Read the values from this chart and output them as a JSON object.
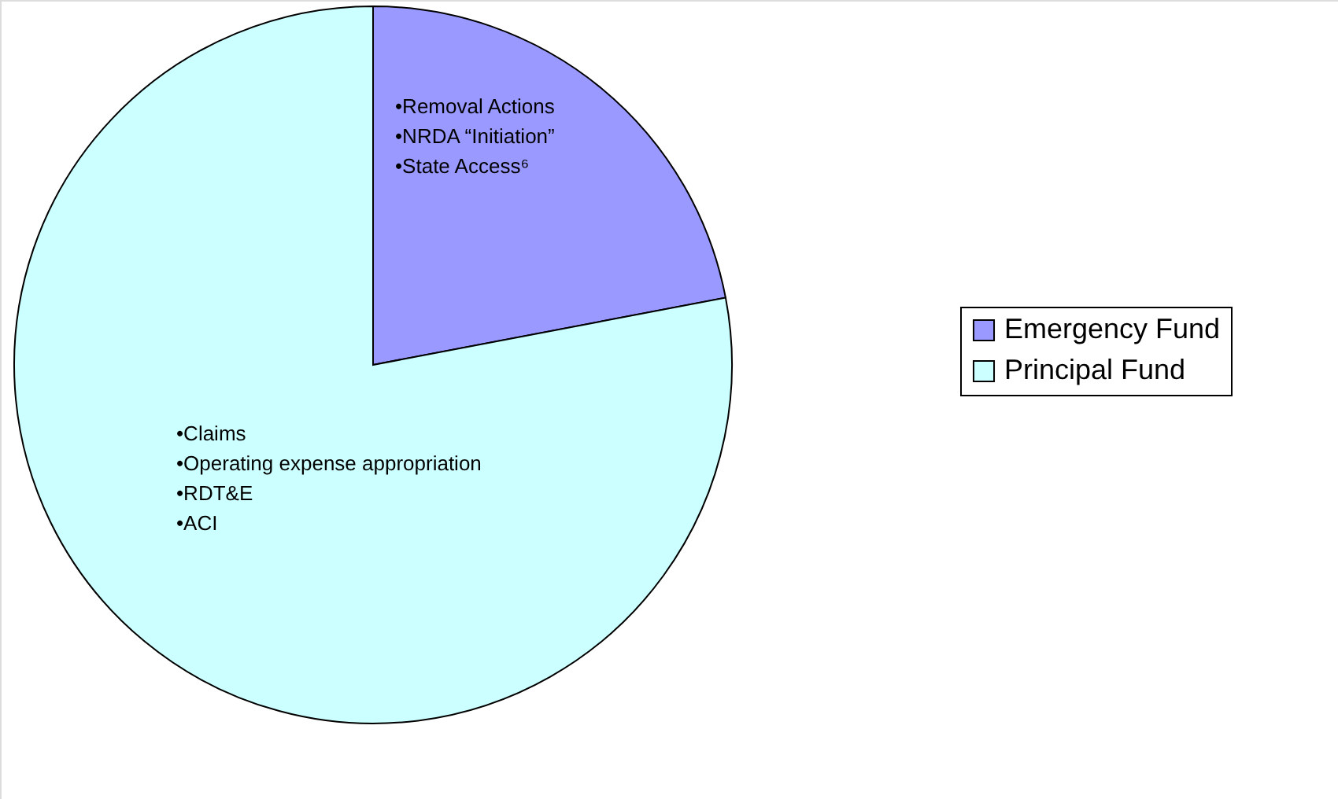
{
  "chart_data": {
    "type": "pie",
    "categories": [
      "Emergency Fund",
      "Principal Fund"
    ],
    "values": [
      22,
      78
    ],
    "colors": [
      "#9999ff",
      "#ccffff"
    ],
    "legend": "right",
    "annotations": [
      "•Removal Actions\n•NRDA “Initiation”\n•State Access⁶",
      "•Claims\n•Operating expense appropriation\n•RDT&E\n•ACI"
    ]
  }
}
